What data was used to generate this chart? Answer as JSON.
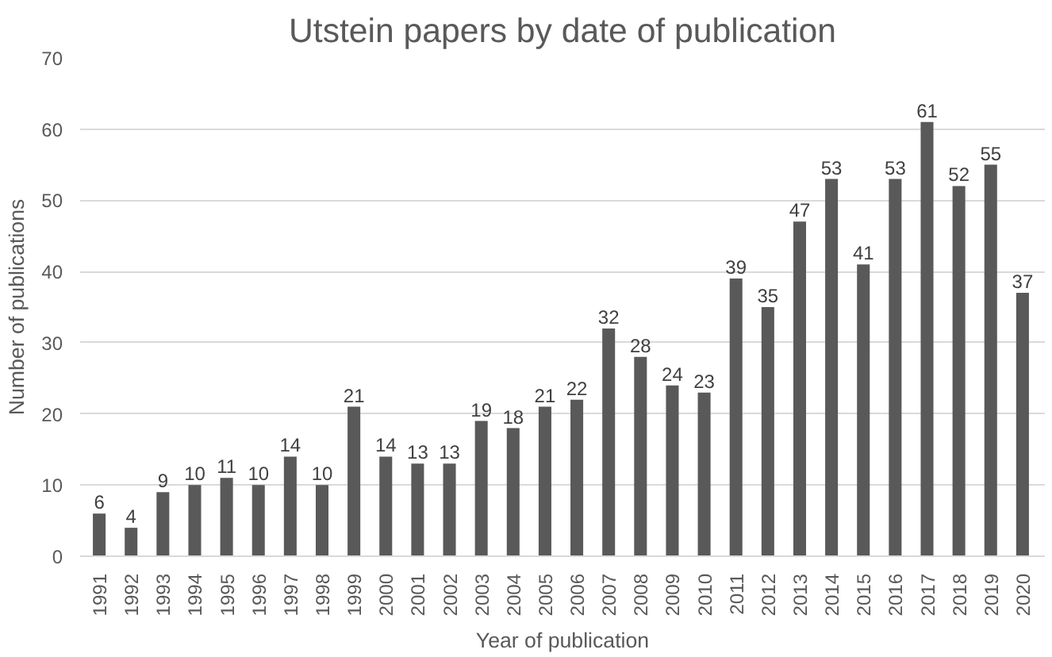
{
  "chart_data": {
    "type": "bar",
    "title": "Utstein papers by date of publication",
    "xlabel": "Year of publication",
    "ylabel": "Number of publications",
    "categories": [
      "1991",
      "1992",
      "1993",
      "1994",
      "1995",
      "1996",
      "1997",
      "1998",
      "1999",
      "2000",
      "2001",
      "2002",
      "2003",
      "2004",
      "2005",
      "2006",
      "2007",
      "2008",
      "2009",
      "2010",
      "2011",
      "2012",
      "2013",
      "2014",
      "2015",
      "2016",
      "2017",
      "2018",
      "2019",
      "2020"
    ],
    "values": [
      6,
      4,
      9,
      10,
      11,
      10,
      14,
      10,
      21,
      14,
      13,
      13,
      19,
      18,
      21,
      22,
      32,
      28,
      24,
      23,
      39,
      35,
      47,
      53,
      41,
      53,
      61,
      52,
      55,
      37
    ],
    "color": "#595959",
    "ylim": [
      0,
      70
    ],
    "yticks": [
      0,
      10,
      20,
      30,
      40,
      50,
      60,
      70
    ],
    "grid": "y",
    "data_labels": true
  }
}
